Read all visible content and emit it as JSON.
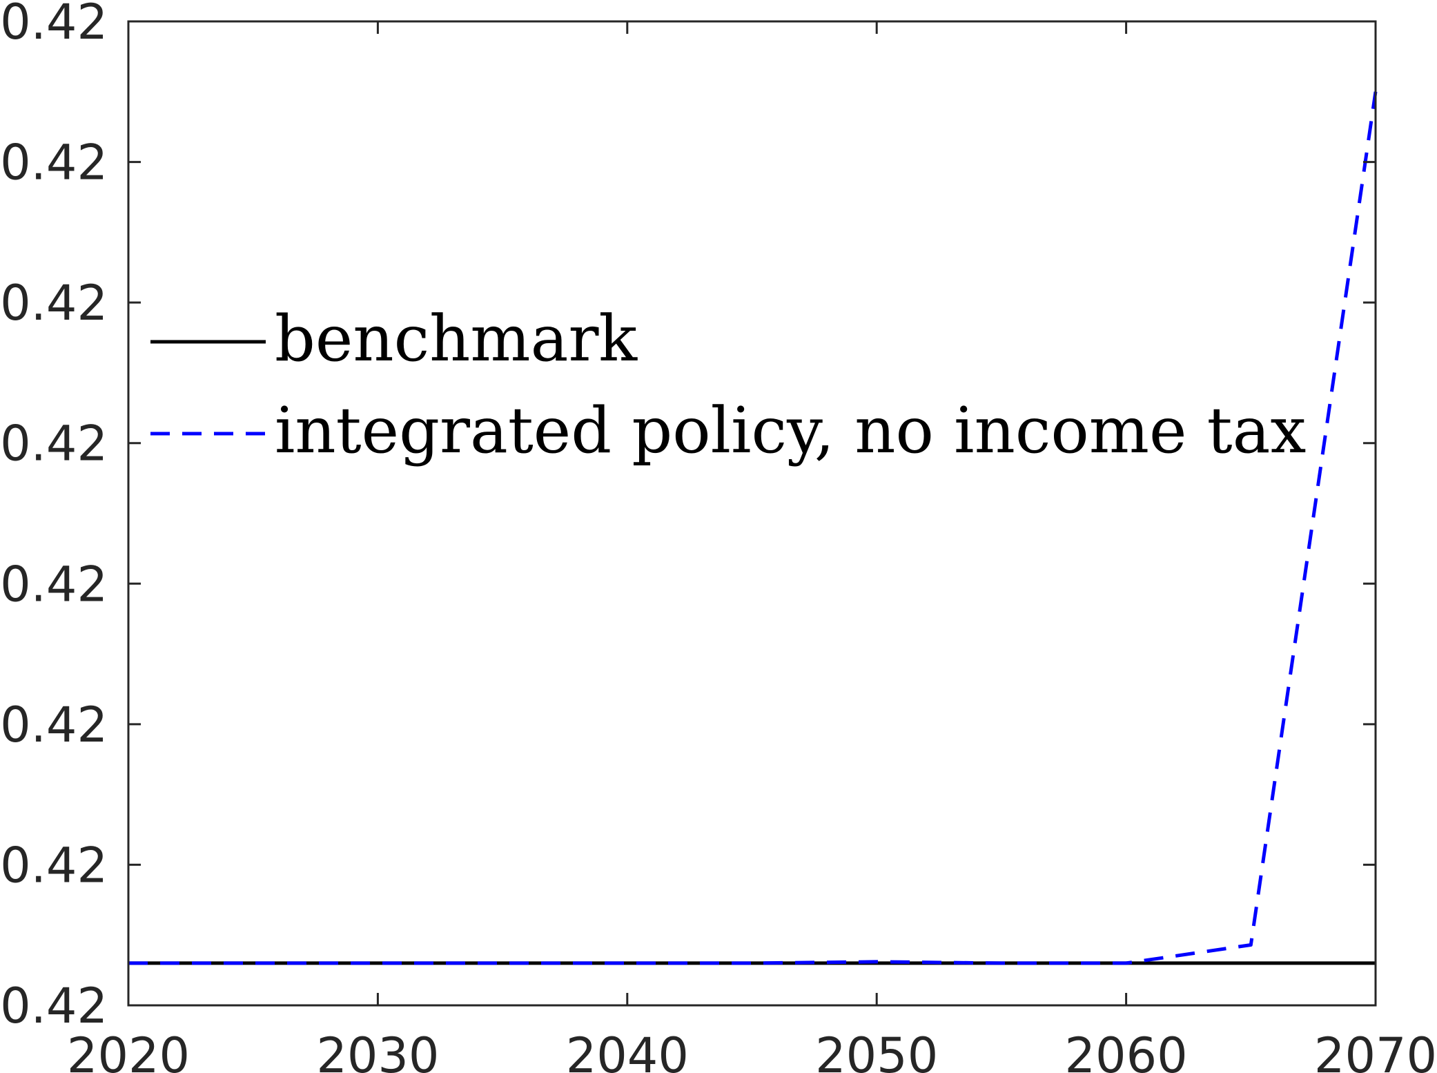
{
  "chart_data": {
    "type": "line",
    "title": "",
    "xlabel": "",
    "ylabel": "",
    "xlim": [
      2020,
      2070
    ],
    "ylim": [
      0,
      7
    ],
    "xticks": [
      2020,
      2030,
      2040,
      2050,
      2060,
      2070
    ],
    "xtick_labels": [
      "2020",
      "2030",
      "2040",
      "2050",
      "2060",
      "2070"
    ],
    "yticks": [
      0,
      1,
      2,
      3,
      4,
      5,
      6,
      7
    ],
    "ytick_labels": [
      "0.42",
      "0.42",
      "0.42",
      "0.42",
      "0.42",
      "0.42",
      "0.42",
      "0.42"
    ],
    "y_axis_note": "tick labels all read 0.42; vertical positions expressed in tick-interval units",
    "grid": false,
    "legend_position": "center-left",
    "series": [
      {
        "name": "benchmark",
        "color": "#000000",
        "style": "solid",
        "x": [
          2020,
          2030,
          2040,
          2050,
          2060,
          2070
        ],
        "y": [
          0.3,
          0.3,
          0.3,
          0.3,
          0.3,
          0.3
        ]
      },
      {
        "name": "integrated policy, no income tax",
        "color": "#0000ff",
        "style": "dashed",
        "x": [
          2020,
          2030,
          2040,
          2045,
          2050,
          2055,
          2060,
          2065,
          2070
        ],
        "y": [
          0.3,
          0.3,
          0.3,
          0.3,
          0.31,
          0.3,
          0.3,
          0.43,
          6.5
        ]
      }
    ]
  }
}
